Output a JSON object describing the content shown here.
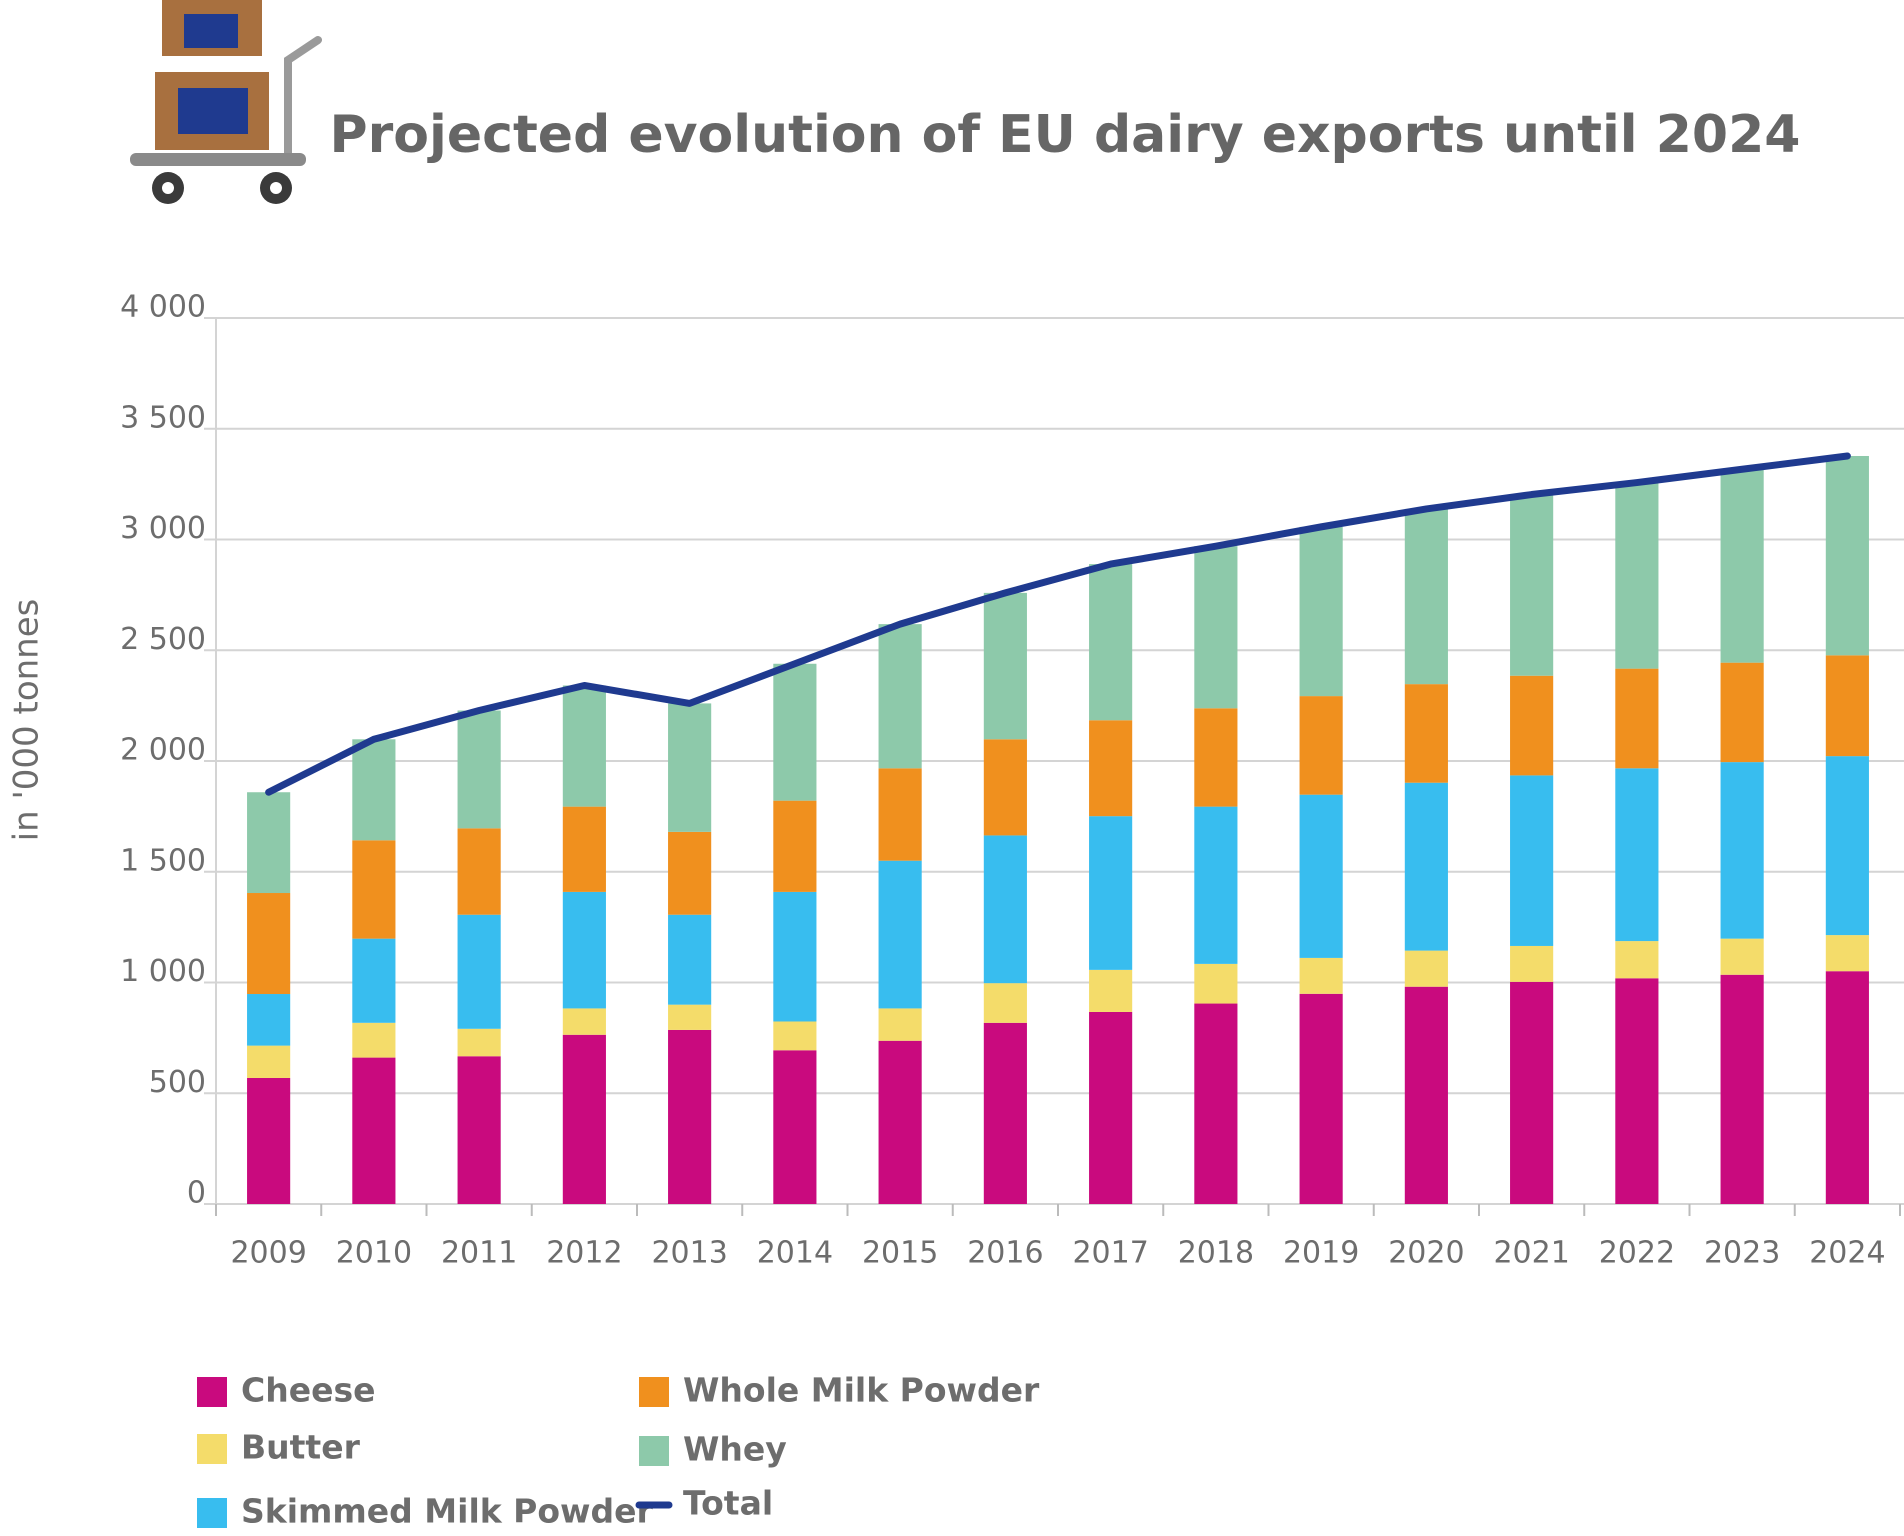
{
  "chart_data": {
    "type": "bar",
    "stacked": true,
    "title": "Projected evolution of EU dairy exports until 2024",
    "y_label": "in '000 tonnes",
    "categories": [
      "2009",
      "2010",
      "2011",
      "2012",
      "2013",
      "2014",
      "2015",
      "2016",
      "2017",
      "2018",
      "2019",
      "2020",
      "2021",
      "2022",
      "2023",
      "2024"
    ],
    "series": [
      {
        "name": "Cheese",
        "color": "#c90a7e",
        "type": "bar",
        "values": [
          569,
          661,
          667,
          764,
          786,
          694,
          737,
          818,
          867,
          905,
          949,
          981,
          1003,
          1019,
          1035,
          1051
        ]
      },
      {
        "name": "Butter",
        "color": "#f4dc6a",
        "type": "bar",
        "values": [
          146,
          157,
          124,
          119,
          114,
          130,
          146,
          179,
          190,
          179,
          162,
          163,
          162,
          168,
          163,
          163
        ]
      },
      {
        "name": "Skimmed Milk Powder",
        "color": "#38bdef",
        "type": "bar",
        "values": [
          233,
          380,
          515,
          526,
          406,
          585,
          667,
          667,
          694,
          710,
          737,
          758,
          770,
          780,
          797,
          808
        ]
      },
      {
        "name": "Whole Milk Powder",
        "color": "#f0901e",
        "type": "bar",
        "values": [
          456,
          444,
          390,
          385,
          374,
          412,
          417,
          434,
          433,
          444,
          445,
          445,
          450,
          450,
          449,
          455
        ]
      },
      {
        "name": "Whey",
        "color": "#8dc9aa",
        "type": "bar",
        "values": [
          455,
          456,
          532,
          547,
          580,
          618,
          651,
          661,
          705,
          732,
          764,
          791,
          818,
          840,
          873,
          900
        ]
      },
      {
        "name": "Total",
        "color": "#1f3a8f",
        "type": "line",
        "values": [
          1859,
          2098,
          2228,
          2341,
          2260,
          2439,
          2618,
          2759,
          2889,
          2970,
          3057,
          3138,
          3203,
          3257,
          3317,
          3377
        ]
      }
    ],
    "ylim": [
      0,
      4000
    ],
    "yticks": [
      0,
      500,
      {
        "value": 1000,
        "label": "1 000"
      },
      {
        "value": 1500,
        "label": "1 500"
      },
      {
        "value": 2000,
        "label": "2 000"
      },
      {
        "value": 2500,
        "label": "2 500"
      },
      {
        "value": 3000,
        "label": "3 000"
      },
      {
        "value": 3500,
        "label": "3 500"
      },
      {
        "value": 4000,
        "label": "4 000"
      }
    ],
    "grid": true
  }
}
